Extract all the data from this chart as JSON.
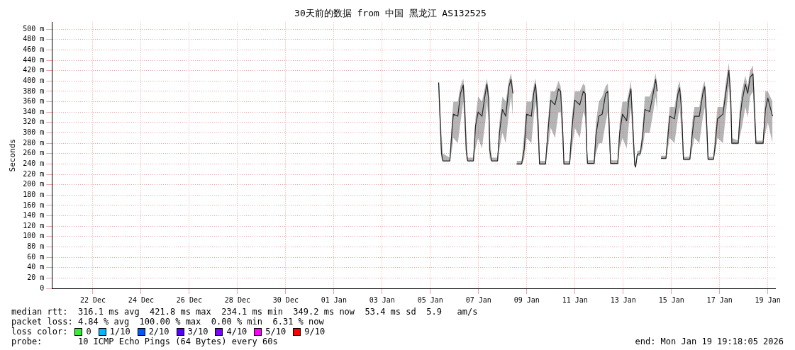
{
  "chart_data": {
    "type": "line",
    "title": "30天前的数据 from 中国 黑龙江 AS132525",
    "ylabel": "Seconds",
    "xlim": [
      "2025-12-20T19:18",
      "2026-01-19T19:18"
    ],
    "xticks": [
      {
        "value": "2025-12-22T12:00",
        "label": "22 Dec"
      },
      {
        "value": "2025-12-24T12:00",
        "label": "24 Dec"
      },
      {
        "value": "2025-12-26T12:00",
        "label": "26 Dec"
      },
      {
        "value": "2025-12-28T12:00",
        "label": "28 Dec"
      },
      {
        "value": "2025-12-30T12:00",
        "label": "30 Dec"
      },
      {
        "value": "2026-01-01T12:00",
        "label": "01 Jan"
      },
      {
        "value": "2026-01-03T12:00",
        "label": "03 Jan"
      },
      {
        "value": "2026-01-05T12:00",
        "label": "05 Jan"
      },
      {
        "value": "2026-01-07T12:00",
        "label": "07 Jan"
      },
      {
        "value": "2026-01-09T12:00",
        "label": "09 Jan"
      },
      {
        "value": "2026-01-11T12:00",
        "label": "11 Jan"
      },
      {
        "value": "2026-01-13T12:00",
        "label": "13 Jan"
      },
      {
        "value": "2026-01-15T12:00",
        "label": "15 Jan"
      },
      {
        "value": "2026-01-17T12:00",
        "label": "17 Jan"
      },
      {
        "value": "2026-01-19T12:00",
        "label": "19 Jan"
      }
    ],
    "ylim": [
      0,
      513
    ],
    "yticks": [
      0,
      {
        "value": 20,
        "label": "20 m"
      },
      {
        "value": 40,
        "label": "40 m"
      },
      {
        "value": 60,
        "label": "60 m"
      },
      {
        "value": 80,
        "label": "80 m"
      },
      {
        "value": 100,
        "label": "100 m"
      },
      {
        "value": 120,
        "label": "120 m"
      },
      {
        "value": 140,
        "label": "140 m"
      },
      {
        "value": 160,
        "label": "160 m"
      },
      {
        "value": 180,
        "label": "180 m"
      },
      {
        "value": 200,
        "label": "200 m"
      },
      {
        "value": 220,
        "label": "220 m"
      },
      {
        "value": 240,
        "label": "240 m"
      },
      {
        "value": 260,
        "label": "260 m"
      },
      {
        "value": 280,
        "label": "280 m"
      },
      {
        "value": 300,
        "label": "300 m"
      },
      {
        "value": 320,
        "label": "320 m"
      },
      {
        "value": 340,
        "label": "340 m"
      },
      {
        "value": 360,
        "label": "360 m"
      },
      {
        "value": 380,
        "label": "380 m"
      },
      {
        "value": 400,
        "label": "400 m"
      },
      {
        "value": 420,
        "label": "420 m"
      },
      {
        "value": 440,
        "label": "440 m"
      },
      {
        "value": 460,
        "label": "460 m"
      },
      {
        "value": 480,
        "label": "480 m"
      },
      {
        "value": 500,
        "label": "500 m"
      }
    ],
    "grid": true,
    "series": [
      {
        "color": "#000000",
        "x": [
          "2026-01-05T20:18",
          "2026-01-05T23:06",
          "2026-01-06T00:30",
          "2026-01-06T07:24",
          "2026-01-06T09:42",
          "2026-01-06T10:54",
          "2026-01-06T15:24",
          "2026-01-06T18:00",
          "2026-01-06T20:48",
          "2026-01-06T22:24",
          "2026-01-06T23:48",
          "2026-01-07T01:12",
          "2026-01-07T06:54",
          "2026-01-07T09:00",
          "2026-01-07T11:36",
          "2026-01-07T15:24",
          "2026-01-07T18:42",
          "2026-01-07T20:18",
          "2026-01-07T22:12",
          "2026-01-07T23:06",
          "2026-01-08T01:00",
          "2026-01-08T06:54",
          "2026-01-08T08:48",
          "2026-01-08T11:48",
          "2026-01-08T15:06",
          "2026-01-08T18:12",
          "2026-01-08T20:18",
          "2026-01-08T22:12",
          "2026-01-09T00:00",
          "2026-01-09T01:54",
          "2026-01-09T06:54",
          "2026-01-09T09:30",
          "2026-01-09T11:48",
          "2026-01-09T16:36",
          "2026-01-09T18:54",
          "2026-01-09T20:48",
          "2026-01-09T23:06",
          "2026-01-10T00:42",
          "2026-01-10T06:42",
          "2026-01-10T09:00",
          "2026-01-10T11:48",
          "2026-01-10T16:06",
          "2026-01-10T19:36",
          "2026-01-10T21:42",
          "2026-01-10T23:36",
          "2026-01-11T01:00",
          "2026-01-11T06:42",
          "2026-01-11T09:00",
          "2026-01-11T11:48",
          "2026-01-11T16:48",
          "2026-01-11T20:18",
          "2026-01-11T22:12",
          "2026-01-11T23:48",
          "2026-01-12T00:30",
          "2026-01-12T07:06",
          "2026-01-12T08:54",
          "2026-01-12T11:48",
          "2026-01-12T15:06",
          "2026-01-12T18:36",
          "2026-01-12T20:42",
          "2026-01-12T22:18",
          "2026-01-12T23:30",
          "2026-01-13T06:36",
          "2026-01-13T08:30",
          "2026-01-13T11:18",
          "2026-01-13T15:30",
          "2026-01-13T17:48",
          "2026-01-13T19:42",
          "2026-01-13T21:54",
          "2026-01-13T23:30",
          "2026-01-14T00:24",
          "2026-01-14T02:06",
          "2026-01-14T05:00",
          "2026-01-14T07:18",
          "2026-01-14T09:36",
          "2026-01-14T14:24",
          "2026-01-14T17:54",
          "2026-01-14T20:18",
          "2026-01-14T21:54",
          "2026-01-14T23:30",
          "2026-01-15T01:36",
          "2026-01-15T06:36",
          "2026-01-15T08:30",
          "2026-01-15T10:18",
          "2026-01-15T15:06",
          "2026-01-15T18:36",
          "2026-01-15T20:12",
          "2026-01-15T22:06",
          "2026-01-16T00:00",
          "2026-01-16T06:24",
          "2026-01-16T08:42",
          "2026-01-16T11:00",
          "2026-01-16T15:48",
          "2026-01-16T19:18",
          "2026-01-16T21:12",
          "2026-01-16T22:48",
          "2026-01-17T00:30",
          "2026-01-17T05:54",
          "2026-01-17T07:30",
          "2026-01-17T09:54",
          "2026-01-17T15:18",
          "2026-01-17T18:24",
          "2026-01-17T21:12",
          "2026-01-17T23:06",
          "2026-01-18T00:12",
          "2026-01-18T06:36",
          "2026-01-18T07:48",
          "2026-01-18T10:06",
          "2026-01-18T13:36",
          "2026-01-18T16:00",
          "2026-01-18T18:24",
          "2026-01-18T21:12",
          "2026-01-18T22:36",
          "2026-01-19T00:12",
          "2026-01-19T07:18",
          "2026-01-19T09:36",
          "2026-01-19T12:00",
          "2026-01-19T16:42"
        ],
        "values": [
          397,
          260,
          246,
          246,
          309,
          336,
          332,
          376,
          392,
          336,
          265,
          246,
          246,
          313,
          340,
          332,
          376,
          394,
          363,
          267,
          246,
          246,
          300,
          345,
          332,
          389,
          403,
          376,
          null,
          240,
          240,
          269,
          336,
          332,
          376,
          394,
          327,
          240,
          240,
          300,
          363,
          354,
          385,
          380,
          314,
          240,
          240,
          309,
          363,
          354,
          380,
          376,
          265,
          241,
          241,
          296,
          332,
          336,
          376,
          380,
          300,
          241,
          241,
          300,
          336,
          323,
          367,
          385,
          300,
          238,
          234,
          259,
          260,
          292,
          345,
          341,
          376,
          403,
          380,
          null,
          251,
          251,
          292,
          332,
          327,
          376,
          387,
          345,
          249,
          249,
          296,
          332,
          332,
          376,
          389,
          336,
          249,
          249,
          274,
          327,
          336,
          380,
          420,
          367,
          280,
          280,
          318,
          358,
          394,
          376,
          407,
          414,
          354,
          280,
          280,
          345,
          367,
          332
        ],
        "lower": [
          360,
          250,
          244,
          244,
          270,
          290,
          280,
          320,
          360,
          300,
          250,
          244,
          244,
          270,
          290,
          270,
          320,
          360,
          320,
          250,
          244,
          244,
          270,
          300,
          280,
          340,
          370,
          330,
          null,
          238,
          238,
          250,
          290,
          280,
          330,
          360,
          290,
          238,
          238,
          270,
          310,
          290,
          340,
          340,
          280,
          238,
          238,
          270,
          310,
          290,
          340,
          330,
          250,
          239,
          239,
          260,
          280,
          280,
          320,
          340,
          270,
          239,
          239,
          270,
          290,
          270,
          320,
          350,
          270,
          236,
          232,
          255,
          256,
          270,
          300,
          300,
          340,
          370,
          340,
          null,
          249,
          249,
          270,
          290,
          280,
          330,
          350,
          300,
          247,
          247,
          270,
          290,
          280,
          330,
          350,
          300,
          247,
          247,
          260,
          290,
          280,
          340,
          390,
          330,
          278,
          278,
          290,
          310,
          350,
          330,
          370,
          380,
          310,
          278,
          278,
          300,
          320,
          280
        ],
        "upper": [
          405,
          300,
          260,
          252,
          330,
          360,
          360,
          390,
          405,
          370,
          300,
          252,
          252,
          330,
          370,
          360,
          390,
          405,
          380,
          300,
          252,
          252,
          320,
          370,
          360,
          400,
          415,
          390,
          null,
          246,
          246,
          300,
          360,
          360,
          390,
          405,
          360,
          246,
          246,
          320,
          380,
          380,
          400,
          390,
          340,
          246,
          246,
          330,
          380,
          380,
          395,
          390,
          300,
          247,
          247,
          320,
          360,
          370,
          390,
          395,
          330,
          247,
          247,
          320,
          360,
          360,
          380,
          400,
          330,
          245,
          240,
          265,
          266,
          310,
          370,
          370,
          390,
          415,
          390,
          null,
          256,
          256,
          310,
          350,
          350,
          390,
          400,
          370,
          254,
          254,
          320,
          350,
          350,
          390,
          400,
          360,
          254,
          254,
          300,
          350,
          350,
          400,
          435,
          390,
          290,
          285,
          340,
          380,
          410,
          390,
          420,
          430,
          370,
          285,
          285,
          380,
          380,
          360
        ]
      }
    ],
    "annotations": [
      "median rtt:  316.1 ms avg  421.8 ms max  234.1 ms min  349.2 ms now  53.4 ms sd  5.9   am/s",
      "packet loss: 4.84 % avg  100.00 % max  0.00 % min  6.31 % now",
      "loss color:",
      "0",
      "1/10",
      "2/10",
      "3/10",
      "4/10",
      "5/10",
      "9/10",
      "probe:       10 ICMP Echo Pings (64 Bytes) every 60s",
      "end: Mon Jan 19 19:18:05 2026"
    ]
  }
}
